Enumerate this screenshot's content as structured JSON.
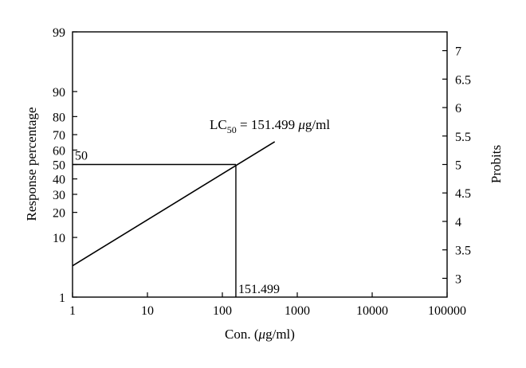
{
  "chart_data": {
    "type": "line",
    "xlabel_prefix": "Con. (",
    "xlabel_mu": "μ",
    "xlabel_suffix": "g/ml)",
    "ylabel": "Response percentage",
    "y2label": "Probits",
    "xscale": "log",
    "xlim": [
      1,
      100000
    ],
    "x_ticks": [
      1,
      10,
      100,
      1000,
      10000,
      100000
    ],
    "x_tick_labels": [
      "1",
      "10",
      "100",
      "1000",
      "10000",
      "100000"
    ],
    "y_left_ticks": [
      1,
      10,
      20,
      30,
      40,
      50,
      60,
      70,
      80,
      90,
      99
    ],
    "y_left_tick_labels": [
      "1",
      "10",
      "20",
      "30",
      "40",
      "50",
      "60",
      "70",
      "80",
      "90",
      "99"
    ],
    "y_right_ticks": [
      3,
      3.5,
      4,
      4.5,
      5,
      5.5,
      6,
      6.5,
      7
    ],
    "y_right_tick_labels": [
      "3",
      "3.5",
      "4",
      "4.5",
      "5",
      "5.5",
      "6",
      "6.5",
      "7"
    ],
    "y_right_lim": [
      2.67,
      7.33
    ],
    "grid": false,
    "series": [
      {
        "x": [
          1,
          500
        ],
        "y_probit": [
          3.22,
          5.4
        ]
      }
    ],
    "annotation": {
      "lc_label_main": "LC",
      "lc_label_sub": "50",
      "lc_label_eq": " = 151.499 ",
      "lc_label_mu": "μ",
      "lc_label_unit": "g/ml",
      "x_value": 151.499,
      "x_value_label": "151.499",
      "y_value": 5,
      "y_value_label": "50"
    }
  }
}
